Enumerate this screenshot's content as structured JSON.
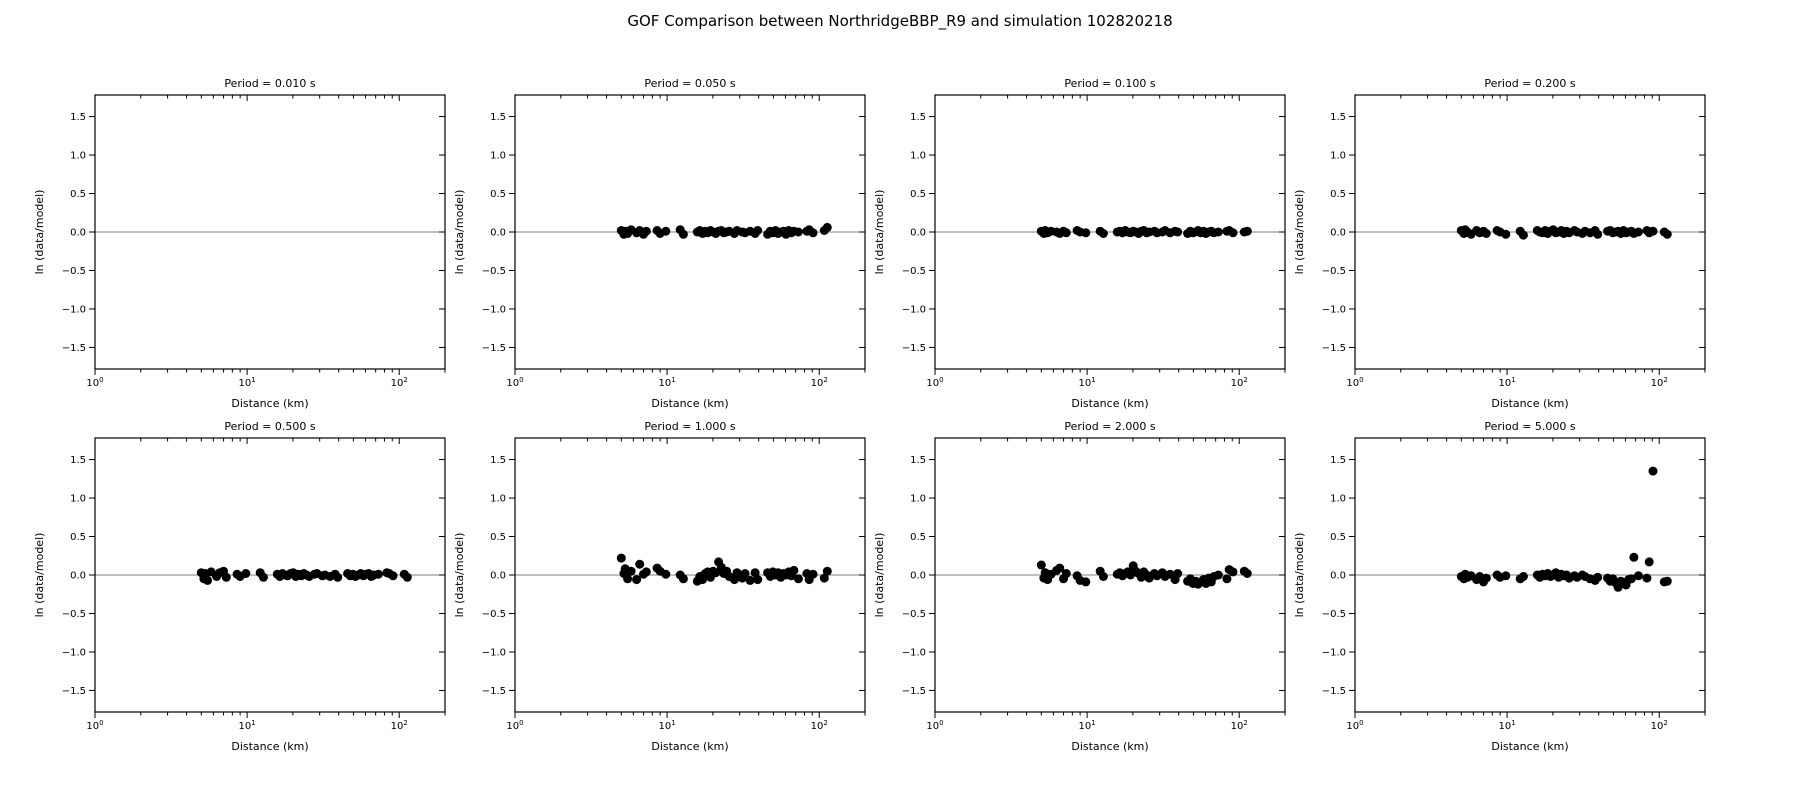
{
  "chart_data": {
    "type": "scatter",
    "suptitle": "GOF Comparison between NorthridgeBBP_R9 and simulation 102820218",
    "xlabel": "Distance (km)",
    "ylabel": "ln (data/model)",
    "xscale": "log",
    "xlim": [
      1,
      200
    ],
    "ylim": [
      -1.78,
      1.78
    ],
    "grid": false,
    "legend": "none",
    "refline_y": 0.0,
    "marker_color": "#000000",
    "refline_color": "#808080",
    "y_ticks": [
      {
        "label": "1.5",
        "value": 1.5
      },
      {
        "label": "1.0",
        "value": 1.0
      },
      {
        "label": "0.5",
        "value": 0.5
      },
      {
        "label": "0.0",
        "value": 0.0
      },
      {
        "label": "−0.5",
        "value": -0.5
      },
      {
        "label": "−1.0",
        "value": -1.0
      },
      {
        "label": "−1.5",
        "value": -1.5
      }
    ],
    "x_ticks": [
      {
        "base": "10",
        "exp": "0",
        "value": 1
      },
      {
        "base": "10",
        "exp": "1",
        "value": 10
      },
      {
        "base": "10",
        "exp": "2",
        "value": 100
      }
    ],
    "distances_km": [
      5.0,
      5.2,
      5.3,
      5.5,
      5.8,
      6.3,
      6.6,
      7.0,
      7.3,
      8.6,
      9.0,
      9.8,
      12.2,
      12.8,
      15.8,
      16.4,
      17.1,
      17.8,
      18.5,
      19.3,
      20.1,
      20.9,
      21.8,
      22.7,
      23.6,
      24.6,
      25.6,
      27.7,
      28.8,
      31.2,
      32.5,
      35.1,
      37.9,
      39.4,
      45.8,
      47.7,
      49.6,
      51.6,
      53.7,
      55.9,
      58.2,
      60.5,
      63.0,
      65.5,
      68.2,
      73.0,
      83.0,
      86.0,
      91.0,
      108.0,
      113.0
    ],
    "subplots": [
      {
        "title": "Period = 0.010 s",
        "values": null
      },
      {
        "title": "Period = 0.050 s",
        "values": [
          0.02,
          -0.03,
          0.01,
          -0.02,
          0.03,
          -0.01,
          0.02,
          -0.03,
          0.01,
          0.02,
          -0.02,
          0.01,
          0.03,
          -0.03,
          0.0,
          0.02,
          -0.02,
          0.01,
          -0.01,
          0.02,
          0.0,
          -0.02,
          0.01,
          0.02,
          -0.01,
          0.0,
          0.01,
          -0.02,
          0.02,
          0.0,
          -0.01,
          0.01,
          -0.02,
          0.02,
          -0.03,
          0.01,
          -0.01,
          0.02,
          -0.02,
          0.0,
          0.01,
          -0.03,
          0.02,
          -0.01,
          0.01,
          0.0,
          0.01,
          0.03,
          -0.01,
          0.02,
          0.06
        ]
      },
      {
        "title": "Period = 0.100 s",
        "values": [
          0.01,
          -0.02,
          0.02,
          -0.01,
          0.01,
          0.0,
          -0.02,
          0.01,
          -0.01,
          0.02,
          0.0,
          -0.01,
          0.01,
          -0.02,
          0.0,
          0.01,
          -0.01,
          0.02,
          0.0,
          -0.01,
          0.01,
          0.0,
          -0.02,
          0.01,
          0.02,
          -0.01,
          0.0,
          0.01,
          -0.01,
          0.0,
          0.02,
          -0.01,
          0.01,
          0.0,
          -0.02,
          0.01,
          -0.01,
          0.0,
          0.02,
          -0.01,
          0.01,
          -0.02,
          0.0,
          0.01,
          -0.01,
          0.0,
          0.01,
          0.02,
          -0.01,
          0.0,
          0.01
        ]
      },
      {
        "title": "Period = 0.200 s",
        "values": [
          0.02,
          -0.02,
          0.03,
          0.0,
          -0.03,
          0.02,
          -0.01,
          0.01,
          -0.02,
          0.02,
          0.0,
          -0.03,
          0.01,
          -0.04,
          0.02,
          0.0,
          -0.01,
          0.02,
          -0.02,
          0.01,
          0.03,
          -0.01,
          0.0,
          0.02,
          -0.02,
          0.01,
          -0.01,
          0.02,
          0.0,
          -0.02,
          0.01,
          -0.01,
          0.02,
          -0.03,
          0.01,
          0.02,
          -0.01,
          0.0,
          0.01,
          -0.02,
          0.02,
          -0.01,
          0.0,
          0.01,
          -0.02,
          0.0,
          0.02,
          -0.01,
          0.01,
          0.0,
          -0.03
        ]
      },
      {
        "title": "Period = 0.500 s",
        "values": [
          0.03,
          -0.05,
          0.02,
          -0.07,
          0.04,
          -0.02,
          0.03,
          0.05,
          -0.03,
          0.01,
          -0.02,
          0.02,
          0.03,
          -0.03,
          0.01,
          -0.02,
          0.02,
          0.0,
          -0.01,
          0.02,
          0.03,
          -0.02,
          0.01,
          -0.01,
          0.02,
          0.0,
          -0.02,
          0.01,
          0.02,
          -0.01,
          0.0,
          -0.02,
          0.01,
          -0.03,
          0.02,
          -0.01,
          0.01,
          -0.02,
          0.0,
          0.02,
          -0.01,
          0.01,
          0.02,
          -0.02,
          0.0,
          0.01,
          0.03,
          0.02,
          -0.01,
          0.01,
          -0.03
        ]
      },
      {
        "title": "Period = 1.000 s",
        "values": [
          0.22,
          0.02,
          0.08,
          -0.05,
          0.05,
          -0.06,
          0.14,
          0.01,
          0.04,
          0.09,
          0.05,
          0.01,
          0.0,
          -0.05,
          -0.08,
          -0.02,
          -0.06,
          0.02,
          0.04,
          -0.03,
          0.05,
          0.03,
          0.17,
          0.1,
          0.02,
          0.05,
          -0.02,
          -0.06,
          0.03,
          -0.04,
          0.02,
          -0.07,
          0.03,
          -0.06,
          0.03,
          -0.02,
          0.04,
          0.0,
          0.03,
          -0.03,
          0.02,
          0.0,
          0.04,
          -0.01,
          0.06,
          -0.05,
          0.02,
          -0.06,
          0.01,
          -0.04,
          0.05
        ]
      },
      {
        "title": "Period = 2.000 s",
        "values": [
          0.13,
          -0.04,
          0.03,
          -0.06,
          0.01,
          0.06,
          0.09,
          -0.05,
          0.02,
          -0.01,
          -0.07,
          -0.09,
          0.05,
          -0.02,
          0.01,
          0.03,
          -0.01,
          0.02,
          0.04,
          0.0,
          0.12,
          0.05,
          0.02,
          -0.03,
          0.04,
          0.0,
          -0.04,
          0.02,
          -0.01,
          0.03,
          -0.02,
          0.01,
          -0.06,
          0.02,
          -0.08,
          -0.05,
          -0.11,
          -0.08,
          -0.12,
          -0.09,
          -0.06,
          -0.11,
          -0.04,
          -0.09,
          -0.02,
          0.0,
          -0.05,
          0.07,
          0.04,
          0.05,
          0.02
        ]
      },
      {
        "title": "Period = 5.000 s",
        "values": [
          -0.02,
          -0.05,
          0.01,
          -0.03,
          -0.01,
          -0.06,
          -0.02,
          -0.09,
          -0.04,
          0.0,
          -0.03,
          -0.01,
          -0.05,
          -0.02,
          0.0,
          -0.03,
          0.01,
          -0.01,
          0.02,
          -0.02,
          0.0,
          0.03,
          -0.03,
          0.01,
          -0.01,
          0.0,
          -0.04,
          -0.01,
          -0.03,
          0.0,
          -0.02,
          -0.05,
          -0.07,
          -0.03,
          -0.04,
          -0.08,
          -0.05,
          -0.1,
          -0.16,
          -0.08,
          -0.11,
          -0.13,
          -0.06,
          -0.05,
          0.23,
          -0.01,
          -0.04,
          0.17,
          1.35,
          -0.09,
          -0.08
        ]
      }
    ]
  }
}
